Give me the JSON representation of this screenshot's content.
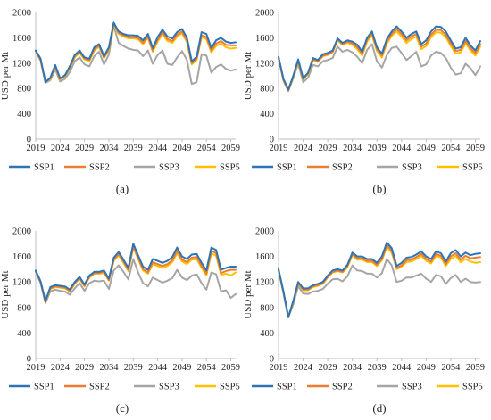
{
  "figure": {
    "background": "#ffffff",
    "axis_color": "#bfbfbf"
  },
  "chart_data": [
    {
      "type": "line",
      "panel": "(a)",
      "caption": "(a)",
      "title": "",
      "xlabel": "",
      "ylabel": "USD per Mt",
      "xlim": [
        2019,
        2060
      ],
      "ylim": [
        0,
        2000
      ],
      "x_ticks": [
        "2019",
        "2024",
        "2029",
        "2034",
        "2039",
        "2044",
        "2049",
        "2054",
        "2059"
      ],
      "y_ticks": [
        "0",
        "400",
        "800",
        "1200",
        "1600",
        "2000"
      ],
      "grid": false,
      "legend_position": "bottom",
      "x": [
        2019,
        2020,
        2021,
        2022,
        2023,
        2024,
        2025,
        2026,
        2027,
        2028,
        2029,
        2030,
        2031,
        2032,
        2033,
        2034,
        2035,
        2036,
        2037,
        2038,
        2039,
        2040,
        2041,
        2042,
        2043,
        2044,
        2045,
        2046,
        2047,
        2048,
        2049,
        2050,
        2051,
        2052,
        2053,
        2054,
        2055,
        2056,
        2057,
        2058,
        2059,
        2060
      ],
      "series": [
        {
          "name": "SSP1",
          "color": "#2e75b6",
          "values": [
            1400,
            1270,
            900,
            970,
            1170,
            960,
            1010,
            1150,
            1330,
            1400,
            1290,
            1270,
            1450,
            1500,
            1310,
            1450,
            1840,
            1700,
            1660,
            1640,
            1640,
            1630,
            1560,
            1660,
            1440,
            1610,
            1730,
            1620,
            1590,
            1690,
            1740,
            1600,
            1230,
            1300,
            1690,
            1660,
            1440,
            1560,
            1600,
            1540,
            1520,
            1530
          ]
        },
        {
          "name": "SSP2",
          "color": "#ed7d31",
          "values": [
            1390,
            1250,
            900,
            960,
            1150,
            950,
            1000,
            1130,
            1310,
            1380,
            1270,
            1250,
            1420,
            1480,
            1290,
            1430,
            1820,
            1680,
            1640,
            1610,
            1610,
            1600,
            1520,
            1620,
            1400,
            1570,
            1690,
            1580,
            1550,
            1650,
            1700,
            1560,
            1200,
            1270,
            1640,
            1610,
            1400,
            1510,
            1550,
            1490,
            1480,
            1480
          ]
        },
        {
          "name": "SSP3",
          "color": "#a5a5a5",
          "values": [
            1400,
            1240,
            890,
            930,
            1100,
            910,
            950,
            1060,
            1230,
            1290,
            1180,
            1150,
            1310,
            1380,
            1180,
            1340,
            1790,
            1520,
            1470,
            1430,
            1410,
            1400,
            1310,
            1400,
            1190,
            1330,
            1400,
            1190,
            1170,
            1290,
            1390,
            1250,
            870,
            900,
            1340,
            1320,
            1050,
            1140,
            1180,
            1110,
            1080,
            1100
          ]
        },
        {
          "name": "SSP5",
          "color": "#ffc000",
          "values": [
            1390,
            1240,
            900,
            950,
            1140,
            940,
            990,
            1120,
            1290,
            1360,
            1260,
            1230,
            1400,
            1460,
            1280,
            1410,
            1800,
            1660,
            1620,
            1590,
            1590,
            1580,
            1500,
            1600,
            1380,
            1540,
            1660,
            1550,
            1520,
            1620,
            1670,
            1530,
            1180,
            1250,
            1610,
            1580,
            1370,
            1470,
            1510,
            1450,
            1430,
            1440
          ]
        }
      ]
    },
    {
      "type": "line",
      "panel": "(b)",
      "caption": "(b)",
      "title": "",
      "xlabel": "",
      "ylabel": "USD per Mt",
      "xlim": [
        2019,
        2060
      ],
      "ylim": [
        0,
        2000
      ],
      "x_ticks": [
        "2019",
        "2024",
        "2029",
        "2034",
        "2039",
        "2044",
        "2049",
        "2054",
        "2059"
      ],
      "y_ticks": [
        "0",
        "400",
        "800",
        "1200",
        "1600",
        "2000"
      ],
      "grid": false,
      "legend_position": "bottom",
      "x": [
        2019,
        2020,
        2021,
        2022,
        2023,
        2024,
        2025,
        2026,
        2027,
        2028,
        2029,
        2030,
        2031,
        2032,
        2033,
        2034,
        2035,
        2036,
        2037,
        2038,
        2039,
        2040,
        2041,
        2042,
        2043,
        2044,
        2045,
        2046,
        2047,
        2048,
        2049,
        2050,
        2051,
        2052,
        2053,
        2054,
        2055,
        2056,
        2057,
        2058,
        2059,
        2060
      ],
      "series": [
        {
          "name": "SSP1",
          "color": "#2e75b6",
          "values": [
            1300,
            950,
            780,
            1000,
            1260,
            960,
            1050,
            1280,
            1250,
            1340,
            1360,
            1400,
            1590,
            1520,
            1560,
            1540,
            1490,
            1380,
            1600,
            1700,
            1450,
            1350,
            1580,
            1700,
            1780,
            1700,
            1600,
            1660,
            1700,
            1500,
            1560,
            1700,
            1780,
            1770,
            1700,
            1560,
            1430,
            1450,
            1600,
            1480,
            1400,
            1550
          ]
        },
        {
          "name": "SSP2",
          "color": "#ed7d31",
          "values": [
            1290,
            940,
            770,
            990,
            1240,
            950,
            1040,
            1260,
            1230,
            1320,
            1340,
            1380,
            1570,
            1500,
            1540,
            1510,
            1450,
            1350,
            1570,
            1670,
            1420,
            1320,
            1540,
            1660,
            1740,
            1660,
            1560,
            1620,
            1660,
            1460,
            1510,
            1650,
            1730,
            1720,
            1650,
            1510,
            1390,
            1410,
            1550,
            1440,
            1360,
            1500
          ]
        },
        {
          "name": "SSP3",
          "color": "#a5a5a5",
          "values": [
            1280,
            920,
            760,
            960,
            1190,
            900,
            970,
            1170,
            1150,
            1230,
            1250,
            1280,
            1460,
            1380,
            1410,
            1370,
            1300,
            1200,
            1410,
            1500,
            1230,
            1130,
            1330,
            1440,
            1460,
            1360,
            1250,
            1310,
            1380,
            1150,
            1180,
            1320,
            1380,
            1360,
            1280,
            1130,
            1020,
            1040,
            1190,
            1120,
            1010,
            1150
          ]
        },
        {
          "name": "SSP5",
          "color": "#ffc000",
          "values": [
            1290,
            930,
            770,
            980,
            1230,
            940,
            1030,
            1240,
            1220,
            1310,
            1330,
            1370,
            1560,
            1490,
            1520,
            1490,
            1420,
            1320,
            1540,
            1640,
            1390,
            1290,
            1510,
            1630,
            1700,
            1620,
            1520,
            1580,
            1620,
            1420,
            1470,
            1610,
            1690,
            1680,
            1610,
            1470,
            1350,
            1370,
            1510,
            1400,
            1320,
            1460
          ]
        }
      ]
    },
    {
      "type": "line",
      "panel": "(c)",
      "caption": "(c)",
      "title": "",
      "xlabel": "",
      "ylabel": "USD per Mt",
      "xlim": [
        2019,
        2060
      ],
      "ylim": [
        0,
        2000
      ],
      "x_ticks": [
        "2019",
        "2024",
        "2029",
        "2034",
        "2039",
        "2044",
        "2049",
        "2054",
        "2059"
      ],
      "y_ticks": [
        "0",
        "400",
        "800",
        "1200",
        "1600",
        "2000"
      ],
      "grid": false,
      "legend_position": "bottom",
      "x": [
        2019,
        2020,
        2021,
        2022,
        2023,
        2024,
        2025,
        2026,
        2027,
        2028,
        2029,
        2030,
        2031,
        2032,
        2033,
        2034,
        2035,
        2036,
        2037,
        2038,
        2039,
        2040,
        2041,
        2042,
        2043,
        2044,
        2045,
        2046,
        2047,
        2048,
        2049,
        2050,
        2051,
        2052,
        2053,
        2054,
        2055,
        2056,
        2057,
        2058,
        2059,
        2060
      ],
      "series": [
        {
          "name": "SSP1",
          "color": "#2e75b6",
          "values": [
            1380,
            1210,
            900,
            1120,
            1150,
            1140,
            1130,
            1080,
            1200,
            1280,
            1160,
            1300,
            1360,
            1360,
            1380,
            1250,
            1580,
            1670,
            1550,
            1420,
            1800,
            1620,
            1440,
            1390,
            1560,
            1530,
            1500,
            1530,
            1590,
            1740,
            1600,
            1560,
            1630,
            1640,
            1500,
            1380,
            1740,
            1700,
            1390,
            1420,
            1440,
            1440
          ]
        },
        {
          "name": "SSP2",
          "color": "#ed7d31",
          "values": [
            1370,
            1200,
            890,
            1100,
            1130,
            1120,
            1110,
            1060,
            1180,
            1260,
            1140,
            1280,
            1340,
            1340,
            1360,
            1230,
            1550,
            1640,
            1520,
            1390,
            1760,
            1580,
            1400,
            1350,
            1510,
            1480,
            1450,
            1480,
            1540,
            1690,
            1550,
            1510,
            1580,
            1590,
            1450,
            1330,
            1690,
            1650,
            1340,
            1370,
            1390,
            1390
          ]
        },
        {
          "name": "SSP3",
          "color": "#a5a5a5",
          "values": [
            1360,
            1180,
            870,
            1050,
            1080,
            1060,
            1050,
            1000,
            1100,
            1180,
            1060,
            1180,
            1220,
            1210,
            1220,
            1090,
            1380,
            1460,
            1360,
            1240,
            1560,
            1350,
            1180,
            1130,
            1270,
            1230,
            1190,
            1220,
            1260,
            1390,
            1270,
            1230,
            1300,
            1320,
            1180,
            1080,
            1350,
            1320,
            1050,
            1070,
            950,
            1010
          ]
        },
        {
          "name": "SSP5",
          "color": "#ffc000",
          "values": [
            1370,
            1200,
            890,
            1090,
            1120,
            1110,
            1100,
            1050,
            1170,
            1250,
            1130,
            1270,
            1330,
            1330,
            1340,
            1220,
            1530,
            1620,
            1500,
            1370,
            1740,
            1560,
            1380,
            1330,
            1480,
            1450,
            1420,
            1450,
            1510,
            1650,
            1520,
            1480,
            1550,
            1560,
            1420,
            1300,
            1650,
            1610,
            1310,
            1330,
            1300,
            1350
          ]
        }
      ]
    },
    {
      "type": "line",
      "panel": "(d)",
      "caption": "(d)",
      "title": "",
      "xlabel": "",
      "ylabel": "USD per Mt",
      "xlim": [
        2019,
        2060
      ],
      "ylim": [
        0,
        2000
      ],
      "x_ticks": [
        "2019",
        "2024",
        "2029",
        "2034",
        "2039",
        "2044",
        "2049",
        "2054",
        "2059"
      ],
      "y_ticks": [
        "0",
        "400",
        "800",
        "1200",
        "1600",
        "2000"
      ],
      "grid": false,
      "legend_position": "bottom",
      "x": [
        2019,
        2020,
        2021,
        2022,
        2023,
        2024,
        2025,
        2026,
        2027,
        2028,
        2029,
        2030,
        2031,
        2032,
        2033,
        2034,
        2035,
        2036,
        2037,
        2038,
        2039,
        2040,
        2041,
        2042,
        2043,
        2044,
        2045,
        2046,
        2047,
        2048,
        2049,
        2050,
        2051,
        2052,
        2053,
        2054,
        2055,
        2056,
        2057,
        2058,
        2059,
        2060
      ],
      "series": [
        {
          "name": "SSP1",
          "color": "#2e75b6",
          "values": [
            1400,
            1050,
            650,
            900,
            1200,
            1100,
            1100,
            1150,
            1170,
            1200,
            1300,
            1380,
            1400,
            1380,
            1470,
            1660,
            1600,
            1600,
            1560,
            1560,
            1500,
            1600,
            1820,
            1730,
            1450,
            1500,
            1580,
            1590,
            1630,
            1680,
            1600,
            1560,
            1680,
            1650,
            1520,
            1650,
            1700,
            1600,
            1660,
            1620,
            1640,
            1650
          ]
        },
        {
          "name": "SSP2",
          "color": "#ed7d31",
          "values": [
            1390,
            1040,
            650,
            890,
            1180,
            1080,
            1080,
            1130,
            1150,
            1180,
            1280,
            1360,
            1380,
            1360,
            1450,
            1640,
            1570,
            1570,
            1530,
            1530,
            1470,
            1560,
            1780,
            1690,
            1420,
            1460,
            1540,
            1550,
            1590,
            1640,
            1560,
            1520,
            1640,
            1610,
            1480,
            1600,
            1650,
            1550,
            1610,
            1570,
            1580,
            1590
          ]
        },
        {
          "name": "SSP3",
          "color": "#a5a5a5",
          "values": [
            1380,
            1020,
            640,
            850,
            1130,
            1020,
            1010,
            1050,
            1060,
            1090,
            1170,
            1240,
            1250,
            1210,
            1290,
            1460,
            1380,
            1370,
            1330,
            1330,
            1270,
            1340,
            1560,
            1460,
            1200,
            1220,
            1270,
            1270,
            1300,
            1330,
            1250,
            1200,
            1310,
            1290,
            1170,
            1260,
            1310,
            1200,
            1250,
            1200,
            1190,
            1200
          ]
        },
        {
          "name": "SSP5",
          "color": "#ffc000",
          "values": [
            1390,
            1040,
            650,
            880,
            1170,
            1070,
            1070,
            1120,
            1140,
            1170,
            1270,
            1350,
            1370,
            1350,
            1430,
            1620,
            1550,
            1550,
            1510,
            1510,
            1450,
            1540,
            1750,
            1660,
            1400,
            1440,
            1510,
            1520,
            1560,
            1610,
            1530,
            1490,
            1610,
            1580,
            1450,
            1560,
            1610,
            1510,
            1560,
            1520,
            1500,
            1510
          ]
        }
      ]
    }
  ]
}
